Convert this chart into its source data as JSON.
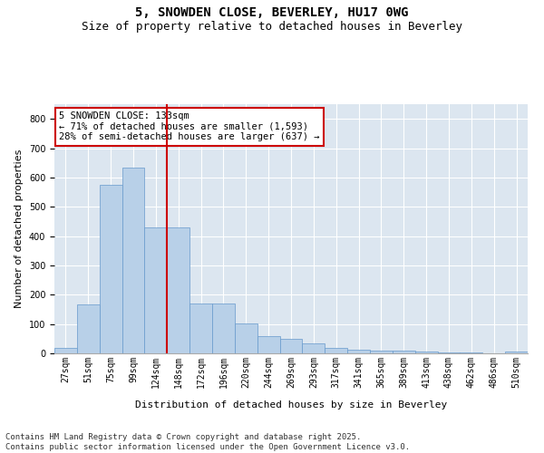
{
  "title1": "5, SNOWDEN CLOSE, BEVERLEY, HU17 0WG",
  "title2": "Size of property relative to detached houses in Beverley",
  "xlabel": "Distribution of detached houses by size in Beverley",
  "ylabel": "Number of detached properties",
  "bar_color": "#b8d0e8",
  "bar_edge_color": "#6699cc",
  "background_color": "#dce6f0",
  "grid_color": "#ffffff",
  "vline_color": "#cc0000",
  "vline_x_idx": 4,
  "annotation_text": "5 SNOWDEN CLOSE: 133sqm\n← 71% of detached houses are smaller (1,593)\n28% of semi-detached houses are larger (637) →",
  "annotation_box_color": "#ffffff",
  "annotation_box_edge": "#cc0000",
  "bins": [
    "27sqm",
    "51sqm",
    "75sqm",
    "99sqm",
    "124sqm",
    "148sqm",
    "172sqm",
    "196sqm",
    "220sqm",
    "244sqm",
    "269sqm",
    "293sqm",
    "317sqm",
    "341sqm",
    "365sqm",
    "389sqm",
    "413sqm",
    "438sqm",
    "462sqm",
    "486sqm",
    "510sqm"
  ],
  "values": [
    20,
    168,
    575,
    635,
    430,
    430,
    170,
    170,
    102,
    60,
    50,
    35,
    18,
    12,
    8,
    8,
    5,
    4,
    2,
    1,
    5
  ],
  "ylim": [
    0,
    850
  ],
  "yticks": [
    0,
    100,
    200,
    300,
    400,
    500,
    600,
    700,
    800
  ],
  "footnote": "Contains HM Land Registry data © Crown copyright and database right 2025.\nContains public sector information licensed under the Open Government Licence v3.0.",
  "title_fontsize": 10,
  "subtitle_fontsize": 9,
  "tick_fontsize": 7,
  "label_fontsize": 8,
  "footnote_fontsize": 6.5
}
